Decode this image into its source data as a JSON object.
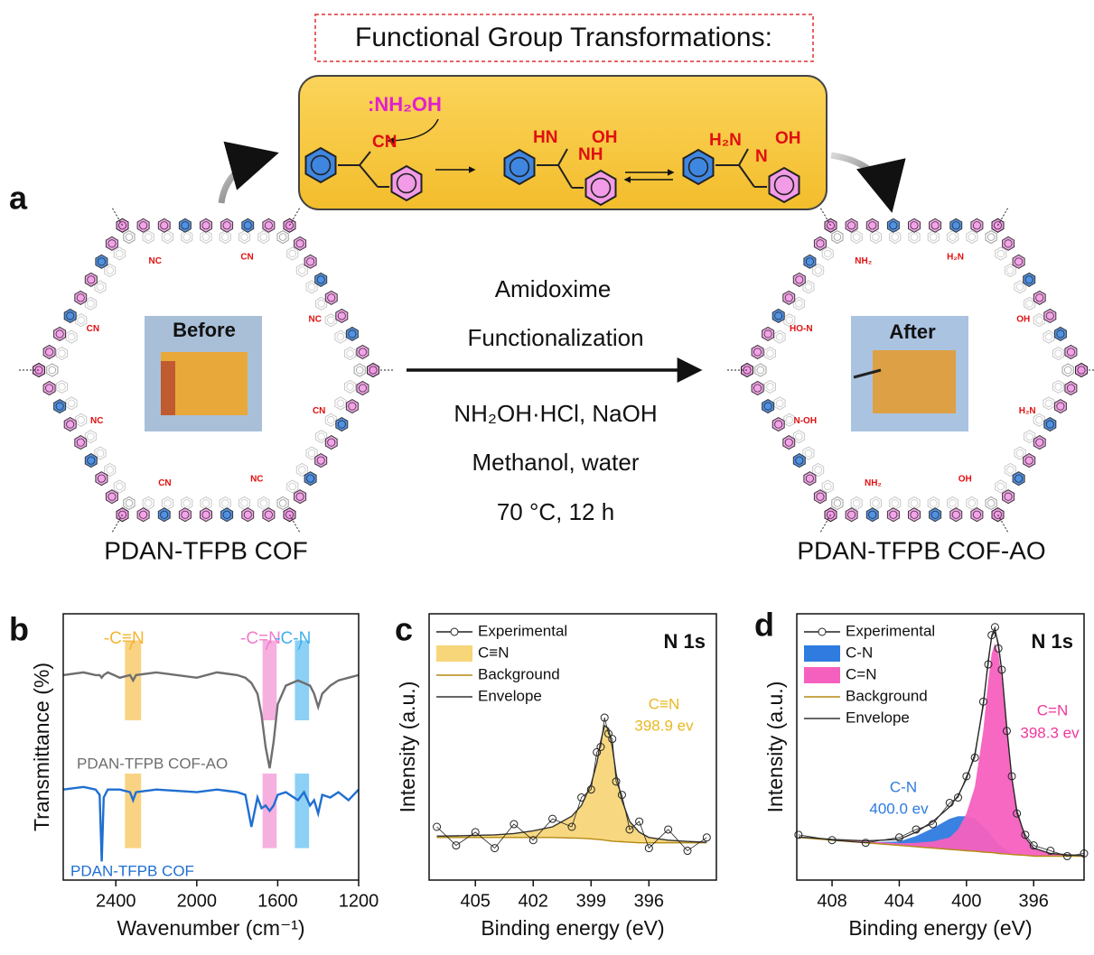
{
  "panel_a": {
    "label": "a",
    "title": "Functional Group Transformations:",
    "reagent": ":NH₂OH",
    "groups": [
      "CN",
      "HN",
      "OH",
      "NH",
      "H₂N",
      "N",
      "OH"
    ],
    "before": "Before",
    "after": "After",
    "conditions": [
      "Amidoxime",
      "Functionalization",
      "NH₂OH·HCl, NaOH",
      "Methanol, water",
      "70 °C, 12 h"
    ],
    "left_name": "PDAN-TFPB COF",
    "right_name": "PDAN-TFPB COF-AO",
    "left_framework_labels": [
      "CN",
      "NC",
      "CN",
      "NC",
      "CN",
      "NC",
      "CN",
      "NC"
    ],
    "right_framework_labels": [
      "H₂N",
      "OH",
      "NH₂",
      "N-OH",
      "HO-N",
      "NH₂",
      "H₂N",
      "OH"
    ]
  },
  "chart_data": [
    {
      "type": "line",
      "panel": "b",
      "xlabel": "Wavenumber (cm⁻¹)",
      "ylabel": "Transmittance (%)",
      "xlim": [
        2660,
        1200
      ],
      "xticks": [
        2400,
        2000,
        1600,
        1200
      ],
      "ylim": [
        0,
        10
      ],
      "legend": "inline",
      "x": [
        2660,
        2560,
        2500,
        2480,
        2470,
        2460,
        2440,
        2380,
        2330,
        2315,
        2300,
        2200,
        2000,
        1900,
        1800,
        1760,
        1730,
        1700,
        1680,
        1660,
        1640,
        1620,
        1600,
        1560,
        1500,
        1470,
        1440,
        1420,
        1400,
        1380,
        1340,
        1300,
        1250,
        1200
      ],
      "series": [
        {
          "name": "PDAN-TFPB COF-AO",
          "color": "#6e6e6e",
          "style": "line",
          "values": [
            7.7,
            7.8,
            7.7,
            7.7,
            7.6,
            7.7,
            7.8,
            7.6,
            7.7,
            7.5,
            7.7,
            7.8,
            7.6,
            7.8,
            7.7,
            7.6,
            7.4,
            7.0,
            6.2,
            5.0,
            4.2,
            5.2,
            6.6,
            7.3,
            7.5,
            7.4,
            7.3,
            7.0,
            6.5,
            7.0,
            7.3,
            7.5,
            7.6,
            7.7
          ]
        },
        {
          "name": "PDAN-TFPB COF",
          "color": "#1f6fd1",
          "style": "line",
          "values": [
            3.4,
            3.5,
            3.4,
            3.2,
            0.7,
            3.1,
            3.4,
            3.4,
            3.3,
            3.0,
            3.3,
            3.4,
            3.3,
            3.4,
            3.3,
            3.2,
            2.0,
            3.1,
            2.7,
            2.8,
            2.6,
            2.8,
            3.2,
            3.3,
            3.0,
            3.3,
            2.8,
            3.0,
            2.5,
            3.2,
            3.1,
            3.3,
            3.0,
            3.4
          ]
        }
      ],
      "bands": [
        {
          "label": "-C≡N",
          "x": 2315,
          "width": 80,
          "color": "#f5b530"
        },
        {
          "label": "-C=N",
          "x": 1640,
          "width": 70,
          "color": "#f07ccc"
        },
        {
          "label": "-C-N",
          "x": 1480,
          "width": 70,
          "color": "#3fb0ee"
        }
      ]
    },
    {
      "type": "line",
      "panel": "c",
      "tag": "N 1s",
      "xlabel": "Binding energy (eV)",
      "ylabel": "Intensity (a.u.)",
      "xlim": [
        407.4,
        392.5
      ],
      "xticks": [
        405,
        402,
        399,
        396
      ],
      "ylim": [
        0,
        10
      ],
      "legend": "upper left",
      "x": [
        407,
        406,
        405,
        404,
        403,
        402,
        401,
        400,
        399.5,
        399,
        398.7,
        398.5,
        398.3,
        398.1,
        397.9,
        397.7,
        397.4,
        397,
        396.5,
        396,
        395,
        394,
        393
      ],
      "series": [
        {
          "name": "Experimental",
          "color": "#222222",
          "style": "scatter",
          "values": [
            2.0,
            1.3,
            1.8,
            1.2,
            2.1,
            1.5,
            2.3,
            2.0,
            3.1,
            3.4,
            4.8,
            5.0,
            6.1,
            5.5,
            5.3,
            3.7,
            3.2,
            1.9,
            2.2,
            1.2,
            1.9,
            1.1,
            1.6
          ]
        },
        {
          "name": "C≡N",
          "color": "#f7d67a",
          "style": "area",
          "values": [
            1.65,
            1.66,
            1.68,
            1.7,
            1.75,
            1.85,
            2.0,
            2.4,
            2.8,
            3.6,
            4.4,
            5.2,
            5.8,
            5.7,
            5.0,
            4.0,
            3.0,
            2.2,
            1.8,
            1.6,
            1.5,
            1.45,
            1.42
          ]
        },
        {
          "name": "Background",
          "color": "#b58a10",
          "style": "baseline",
          "values": [
            1.6,
            1.6,
            1.6,
            1.6,
            1.6,
            1.6,
            1.6,
            1.58,
            1.57,
            1.55,
            1.53,
            1.52,
            1.5,
            1.48,
            1.46,
            1.45,
            1.44,
            1.42,
            1.4,
            1.4,
            1.4,
            1.4,
            1.4
          ]
        },
        {
          "name": "Envelope",
          "color": "#333333",
          "style": "line",
          "values": [
            1.65,
            1.66,
            1.68,
            1.7,
            1.75,
            1.85,
            2.0,
            2.4,
            2.8,
            3.6,
            4.4,
            5.2,
            5.8,
            5.7,
            5.0,
            4.0,
            3.0,
            2.2,
            1.8,
            1.6,
            1.5,
            1.45,
            1.42
          ]
        }
      ],
      "annotations": [
        {
          "text": "C≡N",
          "color": "#e8b820"
        },
        {
          "text": "398.9 ev",
          "color": "#e8b820"
        }
      ]
    },
    {
      "type": "line",
      "panel": "d",
      "tag": "N 1s",
      "xlabel": "Binding energy (eV)",
      "ylabel": "Intensity (a.u.)",
      "xlim": [
        410.1,
        393
      ],
      "xticks": [
        408,
        404,
        400,
        396
      ],
      "ylim": [
        0,
        10
      ],
      "legend": "upper left",
      "x": [
        410,
        408,
        406,
        404,
        403,
        402,
        401,
        400.5,
        400,
        399.5,
        399,
        398.7,
        398.5,
        398.3,
        398.1,
        397.9,
        397.6,
        397.3,
        397,
        396.5,
        396,
        395,
        394,
        393
      ],
      "series": [
        {
          "name": "Experimental",
          "color": "#222222",
          "style": "scatter",
          "values": [
            1.7,
            1.5,
            1.4,
            1.6,
            1.9,
            2.1,
            2.9,
            3.1,
            3.9,
            4.6,
            6.7,
            8.1,
            9.2,
            9.5,
            8.7,
            7.9,
            5.6,
            3.9,
            2.5,
            1.7,
            1.3,
            1.1,
            0.9,
            1.0
          ]
        },
        {
          "name": "C-N",
          "color": "#2f7be0",
          "style": "area",
          "values": [
            1.6,
            1.5,
            1.42,
            1.45,
            1.65,
            1.95,
            2.3,
            2.4,
            2.4,
            2.3,
            2.0,
            1.8,
            1.65,
            1.5,
            1.35,
            1.25,
            1.1,
            1.0,
            0.96,
            0.93,
            0.9,
            0.9,
            0.9,
            0.9
          ]
        },
        {
          "name": "C=N",
          "color": "#f560bf",
          "style": "area",
          "values": [
            1.62,
            1.53,
            1.45,
            1.38,
            1.4,
            1.45,
            1.6,
            1.9,
            2.5,
            3.5,
            5.6,
            7.5,
            8.5,
            8.9,
            8.5,
            7.6,
            5.6,
            3.8,
            2.6,
            1.6,
            1.2,
            1.0,
            0.95,
            0.92
          ]
        },
        {
          "name": "Background",
          "color": "#b58a10",
          "style": "baseline",
          "values": [
            1.6,
            1.5,
            1.4,
            1.3,
            1.25,
            1.2,
            1.15,
            1.13,
            1.1,
            1.08,
            1.05,
            1.04,
            1.03,
            1.02,
            1.0,
            0.99,
            0.98,
            0.96,
            0.95,
            0.93,
            0.9,
            0.9,
            0.9,
            0.9
          ]
        },
        {
          "name": "Envelope",
          "color": "#333333",
          "style": "line",
          "values": [
            1.62,
            1.53,
            1.47,
            1.53,
            1.8,
            2.2,
            2.75,
            3.17,
            3.8,
            4.72,
            6.55,
            8.26,
            9.12,
            9.38,
            8.85,
            7.86,
            5.72,
            3.84,
            2.61,
            1.6,
            1.2,
            1.0,
            0.95,
            0.92
          ]
        }
      ],
      "annotations": [
        {
          "text": "C=N",
          "color": "#f0389c"
        },
        {
          "text": "398.3 ev",
          "color": "#f0389c"
        },
        {
          "text": "C-N",
          "color": "#2f7be0"
        },
        {
          "text": "400.0 ev",
          "color": "#2f7be0"
        }
      ]
    }
  ]
}
